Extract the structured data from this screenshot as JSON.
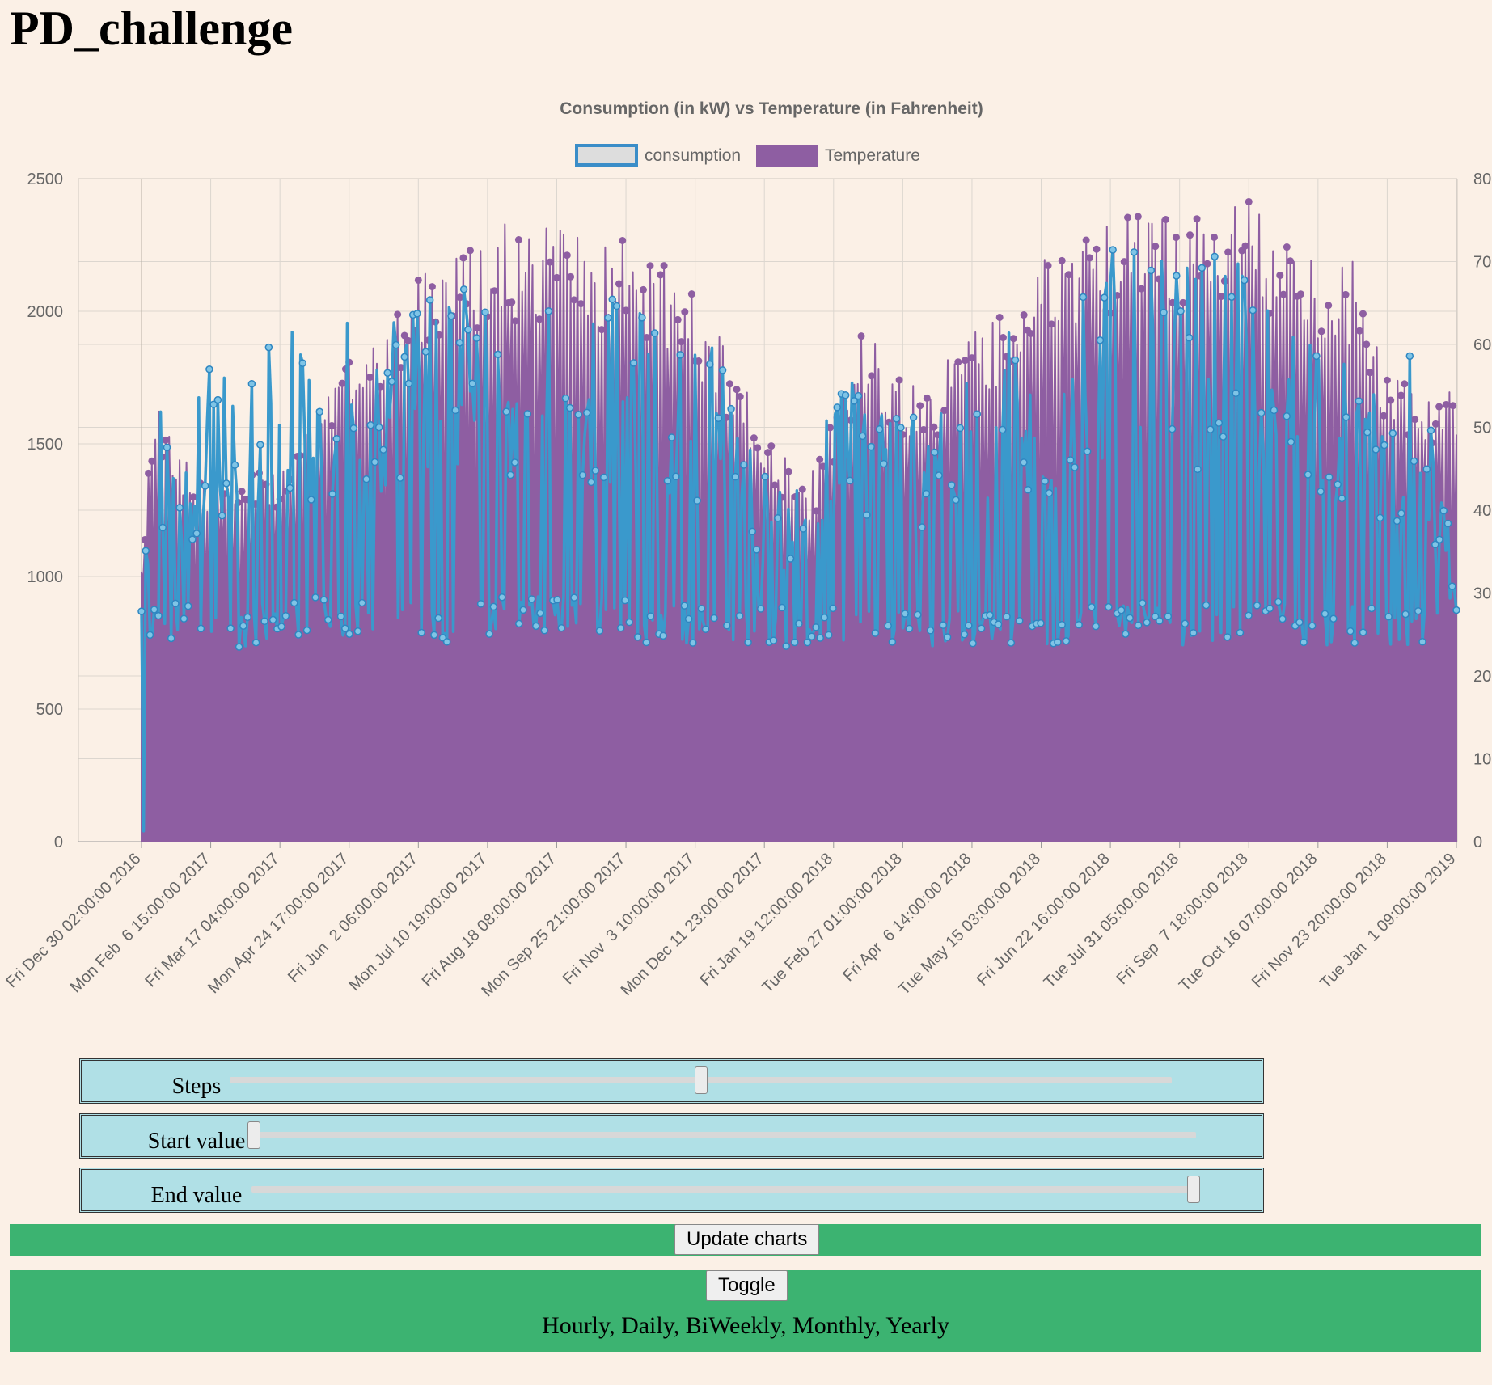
{
  "page": {
    "title": "PD_challenge"
  },
  "chart_data": {
    "type": "line",
    "title": "Consumption (in kW) vs Temperature (in Fahrenheit)",
    "legend_position": "top",
    "grid": true,
    "series": [
      {
        "name": "consumption",
        "axis": "left",
        "style": "line",
        "color": "#3a99cc",
        "fill": "#dddddd"
      },
      {
        "name": "Temperature",
        "axis": "right",
        "style": "area",
        "color": "#8e5ea2"
      }
    ],
    "y_left": {
      "min": 0,
      "max": 2500,
      "ticks": [
        "0",
        "500",
        "1000",
        "1500",
        "2000",
        "2500"
      ]
    },
    "y_right": {
      "min": 0,
      "max": 80,
      "ticks": [
        "0",
        "10",
        "20",
        "30",
        "40",
        "50",
        "60",
        "70",
        "80"
      ]
    },
    "x_tick_labels": [
      "Fri Dec 30 02:00:00 2016",
      "Mon Feb  6 15:00:00 2017",
      "Fri Mar 17 04:00:00 2017",
      "Mon Apr 24 17:00:00 2017",
      "Fri Jun  2 06:00:00 2017",
      "Mon Jul 10 19:00:00 2017",
      "Fri Aug 18 08:00:00 2017",
      "Mon Sep 25 21:00:00 2017",
      "Fri Nov  3 10:00:00 2017",
      "Mon Dec 11 23:00:00 2017",
      "Fri Jan 19 12:00:00 2018",
      "Tue Feb 27 01:00:00 2018",
      "Fri Apr  6 14:00:00 2018",
      "Tue May 15 03:00:00 2018",
      "Fri Jun 22 16:00:00 2018",
      "Tue Jul 31 05:00:00 2018",
      "Fri Sep  7 18:00:00 2018",
      "Tue Oct 16 07:00:00 2018",
      "Fri Nov 23 20:00:00 2018",
      "Tue Jan  1 09:00:00 2019"
    ],
    "x_start": "2016-12-30T02:00:00",
    "x_end": "2019-01-01T09:00:00",
    "consumption_envelope": {
      "x": [
        "2016-12-30T02:00:00",
        "2017-01-06T00:00:00",
        "2017-01-20T00:00:00",
        "2017-02-06T15:00:00",
        "2017-02-20T00:00:00",
        "2017-03-17T04:00:00",
        "2017-04-10T00:00:00",
        "2017-04-24T17:00:00",
        "2017-05-15T00:00:00",
        "2017-06-02T06:00:00",
        "2017-06-20T00:00:00",
        "2017-07-10T19:00:00",
        "2017-08-01T00:00:00",
        "2017-08-18T08:00:00",
        "2017-09-05T00:00:00",
        "2017-09-25T21:00:00",
        "2017-10-15T00:00:00",
        "2017-11-03T10:00:00",
        "2017-11-20T00:00:00",
        "2017-12-11T23:00:00",
        "2017-12-25T00:00:00",
        "2018-01-10T00:00:00",
        "2018-01-19T12:00:00",
        "2018-02-05T00:00:00",
        "2018-02-27T01:00:00",
        "2018-03-15T00:00:00",
        "2018-04-06T14:00:00",
        "2018-04-25T00:00:00",
        "2018-05-15T03:00:00",
        "2018-06-01T00:00:00",
        "2018-06-22T16:00:00",
        "2018-07-10T00:00:00",
        "2018-07-31T05:00:00",
        "2018-08-20T00:00:00",
        "2018-09-07T18:00:00",
        "2018-09-25T00:00:00",
        "2018-10-16T07:00:00",
        "2018-11-05T00:00:00",
        "2018-11-23T20:00:00",
        "2018-12-10T00:00:00",
        "2019-01-01T09:00:00"
      ],
      "low": [
        790,
        760,
        760,
        730,
        720,
        780,
        770,
        760,
        780,
        760,
        710,
        780,
        790,
        800,
        780,
        760,
        740,
        750,
        740,
        750,
        730,
        720,
        740,
        760,
        730,
        720,
        720,
        730,
        730,
        740,
        780,
        760,
        740,
        750,
        760,
        760,
        740,
        740,
        730,
        720,
        830
      ],
      "high": [
        800,
        1820,
        1460,
        1830,
        1770,
        2010,
        1740,
        2000,
        1980,
        2200,
        2160,
        2150,
        2070,
        2100,
        2040,
        2060,
        1950,
        1940,
        1880,
        1400,
        1350,
        1390,
        1770,
        1760,
        1650,
        1770,
        1760,
        1980,
        1660,
        2160,
        2240,
        2220,
        2170,
        2220,
        2160,
        1980,
        1990,
        1770,
        1760,
        1860,
        1050
      ]
    },
    "temperature_envelope": {
      "x": [
        "2016-12-30T02:00:00",
        "2017-01-06T00:00:00",
        "2017-01-20T00:00:00",
        "2017-02-06T15:00:00",
        "2017-02-20T00:00:00",
        "2017-03-17T04:00:00",
        "2017-04-10T00:00:00",
        "2017-04-24T17:00:00",
        "2017-05-15T00:00:00",
        "2017-06-02T06:00:00",
        "2017-06-20T00:00:00",
        "2017-07-10T19:00:00",
        "2017-08-01T00:00:00",
        "2017-08-18T08:00:00",
        "2017-09-05T00:00:00",
        "2017-09-25T21:00:00",
        "2017-10-15T00:00:00",
        "2017-11-03T10:00:00",
        "2017-11-20T00:00:00",
        "2017-12-11T23:00:00",
        "2017-12-25T00:00:00",
        "2018-01-05T00:00:00",
        "2018-01-19T12:00:00",
        "2018-02-05T00:00:00",
        "2018-02-27T01:00:00",
        "2018-03-15T00:00:00",
        "2018-04-06T14:00:00",
        "2018-04-25T00:00:00",
        "2018-05-15T03:00:00",
        "2018-06-01T00:00:00",
        "2018-06-22T16:00:00",
        "2018-07-10T00:00:00",
        "2018-07-31T05:00:00",
        "2018-08-20T00:00:00",
        "2018-09-07T18:00:00",
        "2018-09-25T00:00:00",
        "2018-10-16T07:00:00",
        "2018-11-05T00:00:00",
        "2018-11-23T20:00:00",
        "2018-12-10T00:00:00",
        "2019-01-01T09:00:00"
      ],
      "low": [
        30,
        24,
        24,
        25,
        24,
        26,
        26,
        26,
        27,
        26,
        26,
        27,
        28,
        28,
        28,
        26,
        26,
        26,
        25,
        25,
        22,
        20,
        24,
        25,
        25,
        25,
        26,
        25,
        26,
        26,
        27,
        27,
        27,
        27,
        27,
        27,
        27,
        26,
        26,
        25,
        26
      ],
      "high": [
        33,
        55,
        48,
        44,
        46,
        44,
        53,
        60,
        64,
        71,
        70,
        75,
        74,
        75,
        72,
        73,
        70,
        66,
        60,
        50,
        47,
        43,
        52,
        63,
        56,
        55,
        63,
        64,
        70,
        72,
        75,
        76,
        76,
        78,
        78,
        73,
        71,
        70,
        58,
        54,
        55
      ]
    }
  },
  "sliders": {
    "steps": {
      "label": "Steps",
      "position": 0.5
    },
    "start": {
      "label": "Start value",
      "position": 0.0
    },
    "end": {
      "label": "End value",
      "position": 1.0
    }
  },
  "buttons": {
    "update": "Update charts",
    "toggle": "Toggle"
  },
  "options_text": "Hourly, Daily, BiWeekly, Monthly, Yearly",
  "colors": {
    "background": "#fbf0e6",
    "slider_bg": "#b0e0e6",
    "green": "#3cb371"
  }
}
